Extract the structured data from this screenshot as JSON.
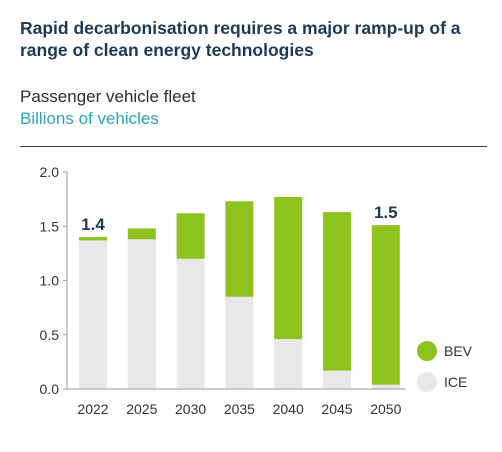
{
  "header": {
    "title": "Rapid decarbonisation requires a major ramp-up of a range of clean energy technologies",
    "subtitle": "Passenger vehicle fleet",
    "unit": "Billions of vehicles"
  },
  "colors": {
    "bev": "#8dc21f",
    "ice": "#e8e8e8",
    "title": "#1b3a57",
    "unit": "#2aa7b5"
  },
  "chart_data": {
    "type": "bar",
    "stacked": true,
    "categories": [
      "2022",
      "2025",
      "2030",
      "2035",
      "2040",
      "2045",
      "2050"
    ],
    "series": [
      {
        "name": "ICE",
        "values": [
          1.37,
          1.38,
          1.2,
          0.85,
          0.46,
          0.17,
          0.04
        ]
      },
      {
        "name": "BEV",
        "values": [
          0.03,
          0.1,
          0.42,
          0.88,
          1.31,
          1.46,
          1.47
        ]
      }
    ],
    "ylim": [
      0,
      2.0
    ],
    "yticks": [
      0.0,
      0.5,
      1.0,
      1.5,
      2.0
    ],
    "ytick_labels": [
      "0.0",
      "0.5",
      "1.0",
      "1.5",
      "2.0"
    ],
    "data_labels": [
      {
        "category": "2022",
        "text": "1.4"
      },
      {
        "category": "2050",
        "text": "1.5"
      }
    ],
    "legend": {
      "placement": "bottom-right",
      "items": [
        {
          "name": "BEV",
          "color": "#8dc21f"
        },
        {
          "name": "ICE",
          "color": "#e8e8e8"
        }
      ]
    },
    "grid": false
  }
}
